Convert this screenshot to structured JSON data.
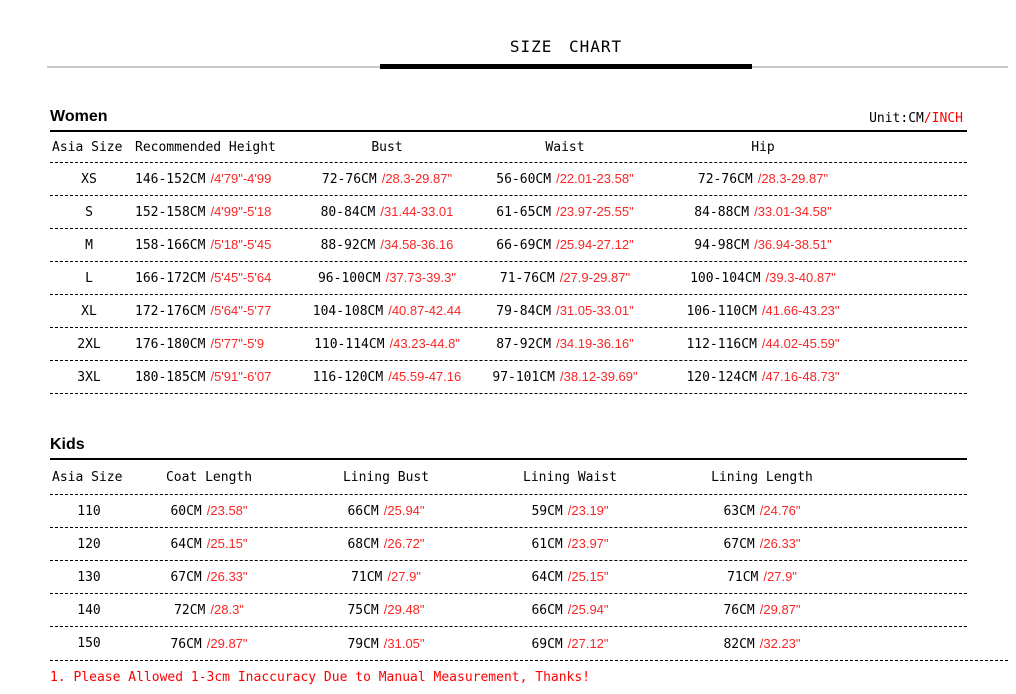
{
  "title": "SIZE CHART",
  "unit": {
    "cm": "Unit:CM",
    "inch": "/INCH"
  },
  "colors": {
    "text": "#000000",
    "accent_red": "#ff0000",
    "value_red": "#fa2525",
    "rule_gray": "#c8c8c8"
  },
  "women": {
    "heading": "Women",
    "headers": [
      "Asia Size",
      "Recommended Height",
      "Bust",
      "Waist",
      "Hip"
    ],
    "rows": [
      {
        "size": "XS",
        "height_cm": "146-152CM",
        "height_in": "/4'79\"-4'99",
        "bust_cm": "72-76CM",
        "bust_in": "/28.3-29.87\"",
        "waist_cm": "56-60CM",
        "waist_in": "/22.01-23.58\"",
        "hip_cm": "72-76CM",
        "hip_in": "/28.3-29.87\""
      },
      {
        "size": "S",
        "height_cm": "152-158CM",
        "height_in": "/4'99\"-5'18",
        "bust_cm": "80-84CM",
        "bust_in": "/31.44-33.01",
        "waist_cm": "61-65CM",
        "waist_in": "/23.97-25.55\"",
        "hip_cm": "84-88CM",
        "hip_in": "/33.01-34.58\""
      },
      {
        "size": "M",
        "height_cm": "158-166CM",
        "height_in": "/5'18\"-5'45",
        "bust_cm": "88-92CM",
        "bust_in": "/34.58-36.16",
        "waist_cm": "66-69CM",
        "waist_in": "/25.94-27.12\"",
        "hip_cm": "94-98CM",
        "hip_in": "/36.94-38.51\""
      },
      {
        "size": "L",
        "height_cm": "166-172CM",
        "height_in": "/5'45\"-5'64",
        "bust_cm": "96-100CM",
        "bust_in": "/37.73-39.3\"",
        "waist_cm": "71-76CM",
        "waist_in": "/27.9-29.87\"",
        "hip_cm": "100-104CM",
        "hip_in": "/39.3-40.87\""
      },
      {
        "size": "XL",
        "height_cm": "172-176CM",
        "height_in": "/5'64\"-5'77",
        "bust_cm": "104-108CM",
        "bust_in": "/40.87-42.44",
        "waist_cm": "79-84CM",
        "waist_in": "/31.05-33.01\"",
        "hip_cm": "106-110CM",
        "hip_in": "/41.66-43.23\""
      },
      {
        "size": "2XL",
        "height_cm": "176-180CM",
        "height_in": "/5'77\"-5'9",
        "bust_cm": "110-114CM",
        "bust_in": "/43.23-44.8\"",
        "waist_cm": "87-92CM",
        "waist_in": "/34.19-36.16\"",
        "hip_cm": "112-116CM",
        "hip_in": "/44.02-45.59\""
      },
      {
        "size": "3XL",
        "height_cm": "180-185CM",
        "height_in": "/5'91\"-6'07",
        "bust_cm": "116-120CM",
        "bust_in": "/45.59-47.16",
        "waist_cm": "97-101CM",
        "waist_in": "/38.12-39.69\"",
        "hip_cm": "120-124CM",
        "hip_in": "/47.16-48.73\""
      }
    ]
  },
  "kids": {
    "heading": "Kids",
    "headers": [
      "Asia Size",
      "Coat Length",
      "Lining Bust",
      "Lining Waist",
      "Lining Length"
    ],
    "rows": [
      {
        "size": "110",
        "coat_cm": "60CM",
        "coat_in": "/23.58\"",
        "bust_cm": "66CM",
        "bust_in": "/25.94\"",
        "waist_cm": "59CM",
        "waist_in": "/23.19\"",
        "length_cm": "63CM",
        "length_in": "/24.76\""
      },
      {
        "size": "120",
        "coat_cm": "64CM",
        "coat_in": "/25.15\"",
        "bust_cm": "68CM",
        "bust_in": "/26.72\"",
        "waist_cm": "61CM",
        "waist_in": "/23.97\"",
        "length_cm": "67CM",
        "length_in": "/26.33\""
      },
      {
        "size": "130",
        "coat_cm": "67CM",
        "coat_in": "/26.33\"",
        "bust_cm": "71CM",
        "bust_in": "/27.9\"",
        "waist_cm": "64CM",
        "waist_in": "/25.15\"",
        "length_cm": "71CM",
        "length_in": "/27.9\""
      },
      {
        "size": "140",
        "coat_cm": "72CM",
        "coat_in": "/28.3\"",
        "bust_cm": "75CM",
        "bust_in": "/29.48\"",
        "waist_cm": "66CM",
        "waist_in": "/25.94\"",
        "length_cm": "76CM",
        "length_in": "/29.87\""
      },
      {
        "size": "150",
        "coat_cm": "76CM",
        "coat_in": "/29.87\"",
        "bust_cm": "79CM",
        "bust_in": "/31.05\"",
        "waist_cm": "69CM",
        "waist_in": "/27.12\"",
        "length_cm": "82CM",
        "length_in": "/32.23\""
      }
    ]
  },
  "footer": {
    "note": "1. Please Allowed 1-3cm Inaccuracy Due to Manual Measurement, Thanks!"
  }
}
